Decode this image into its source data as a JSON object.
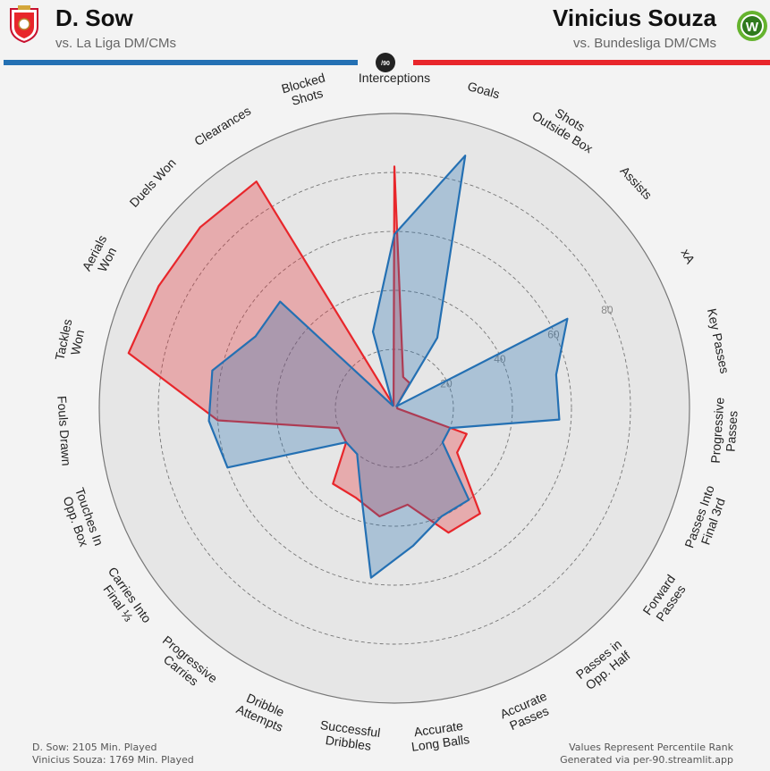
{
  "colors": {
    "player1": "#e8262b",
    "player2": "#2470b3",
    "background": "#f3f3f3"
  },
  "header": {
    "player1_name": "D. Sow",
    "player1_comparison": "vs. La Liga DM/CMs",
    "player1_badge_icon": "sevilla-crest-icon",
    "player2_name": "Vinicius Souza",
    "player2_comparison": "vs. Bundesliga DM/CMs",
    "player2_badge_icon": "wolfsburg-crest-icon",
    "center_badge": "/90",
    "player2_badge_letter": "W"
  },
  "footer": {
    "player1_minutes": "D. Sow: 2105 Min. Played",
    "player2_minutes": "Vinicius Souza: 1769 Min. Played",
    "note": "Values Represent Percentile Rank",
    "credit": "Generated via per-90.streamlit.app"
  },
  "chart_data": {
    "type": "radar",
    "rlim": [
      0,
      100
    ],
    "ring_ticks": [
      20,
      40,
      60,
      80
    ],
    "ring_tick_labels": [
      "20",
      "40",
      "60",
      "80"
    ],
    "categories": [
      "Interceptions",
      "Goals",
      "Shots\nOutside Box",
      "Assists",
      "xA",
      "Key Passes",
      "Progressive\nPasses",
      "Passes Into\nFinal 3rd",
      "Forward\nPasses",
      "Passes in\nOpp. Half",
      "Accurate\nPasses",
      "Accurate\nLong Balls",
      "Successful\nDribbles",
      "Dribble\nAttempts",
      "Progressive\nCarries",
      "Carries Into\nFinal ⅓",
      "Touches In\nOpp. Box",
      "Fouls Drawn",
      "Tackles\nWon",
      "Aerials\nWon",
      "Duels Won",
      "Clearances",
      "Blocked\nShots"
    ],
    "series": [
      {
        "name": "D. Sow",
        "values": [
          82,
          11,
          10,
          1,
          1,
          1,
          1,
          26,
          26,
          46,
          46,
          33,
          37,
          33,
          33,
          20,
          20,
          60,
          92,
          90,
          90,
          90,
          1
        ]
      },
      {
        "name": "Vinicius Souza",
        "values": [
          59,
          89,
          28,
          1,
          66,
          56,
          56,
          20,
          20,
          40,
          40,
          47,
          58,
          29,
          20,
          20,
          60,
          63,
          63,
          53,
          53,
          1,
          27
        ]
      }
    ]
  }
}
